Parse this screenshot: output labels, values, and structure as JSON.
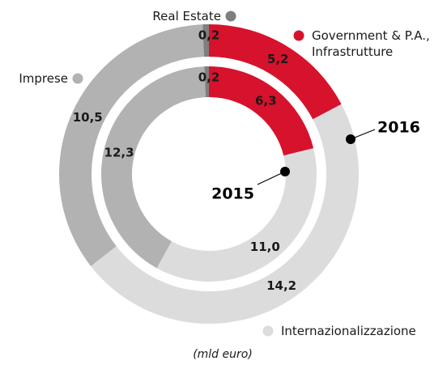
{
  "chart_data": {
    "type": "donut",
    "categories": [
      "Government & P.A., Infrastrutture",
      "Internazionalizzazione",
      "Imprese",
      "Real Estate"
    ],
    "colors": [
      "#d7122d",
      "#dcdcdc",
      "#b2b2b2",
      "#7f7f7f"
    ],
    "series": [
      {
        "name": "2016",
        "values": [
          5.2,
          14.2,
          10.5,
          0.2
        ],
        "value_labels": [
          "5,2",
          "14,2",
          "10,5",
          "0,2"
        ]
      },
      {
        "name": "2015",
        "values": [
          6.3,
          11.0,
          12.3,
          0.2
        ],
        "value_labels": [
          "6,3",
          "11,0",
          "12,3",
          "0,2"
        ]
      }
    ],
    "note": "(mld euro)"
  }
}
